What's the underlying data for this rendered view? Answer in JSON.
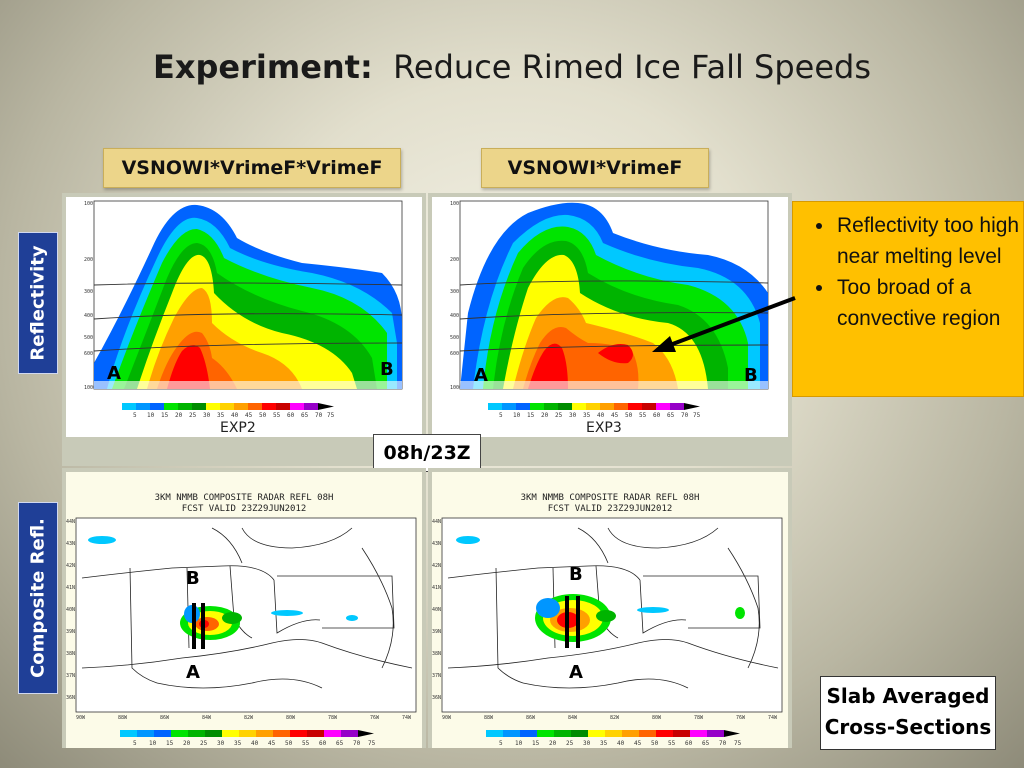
{
  "slide": {
    "title_bold": "Experiment:",
    "title_rest": "Reduce Rimed Ice Fall Speeds"
  },
  "headers": {
    "left": "VSNOWI*VrimeF*VrimeF",
    "right": "VSNOWI*VrimeF"
  },
  "side_labels": {
    "top": "Reflectivity",
    "bottom": "Composite Refl."
  },
  "cross_sections": {
    "left": {
      "name": "EXP2",
      "point_a": "A",
      "point_b": "B"
    },
    "right": {
      "name": "EXP3",
      "point_a": "A",
      "point_b": "B"
    }
  },
  "time_label": "08h/23Z",
  "maps": {
    "title_line1": "3KM NMMB COMPOSITE RADAR REFL 08H",
    "title_line2": "FCST VALID 23Z29JUN2012",
    "lat_ticks": [
      "44N",
      "43N",
      "42N",
      "41N",
      "40N",
      "39N",
      "38N",
      "37N",
      "36N"
    ],
    "lon_ticks": [
      "90W",
      "88W",
      "86W",
      "84W",
      "82W",
      "80W",
      "78W",
      "76W",
      "74W"
    ],
    "left": {
      "point_a": "A",
      "point_b": "B"
    },
    "right": {
      "point_a": "A",
      "point_b": "B"
    }
  },
  "colorbar_ticks": [
    "5",
    "10",
    "15",
    "20",
    "25",
    "30",
    "35",
    "40",
    "45",
    "50",
    "55",
    "60",
    "65",
    "70",
    "75"
  ],
  "colorbar_colors": [
    "#00c8ff",
    "#0096ff",
    "#0064ff",
    "#00e400",
    "#00b400",
    "#008c00",
    "#ffff00",
    "#ffd200",
    "#ffa000",
    "#ff6400",
    "#ff0000",
    "#c80000",
    "#ff00ff",
    "#9600c8",
    "#000000"
  ],
  "pressure_ticks": [
    "100",
    "200",
    "300",
    "400",
    "500",
    "600",
    "700",
    "800",
    "900",
    "1000"
  ],
  "bullets": [
    "Reflectivity too high near melting level",
    "Too broad of a convective region"
  ],
  "slab_note": {
    "line1": "Slab Averaged",
    "line2": "Cross-Sections"
  },
  "colors": {
    "header_bg": "#ecd58a",
    "side_bg": "#1f3f97",
    "bullet_bg": "#ffc000"
  }
}
